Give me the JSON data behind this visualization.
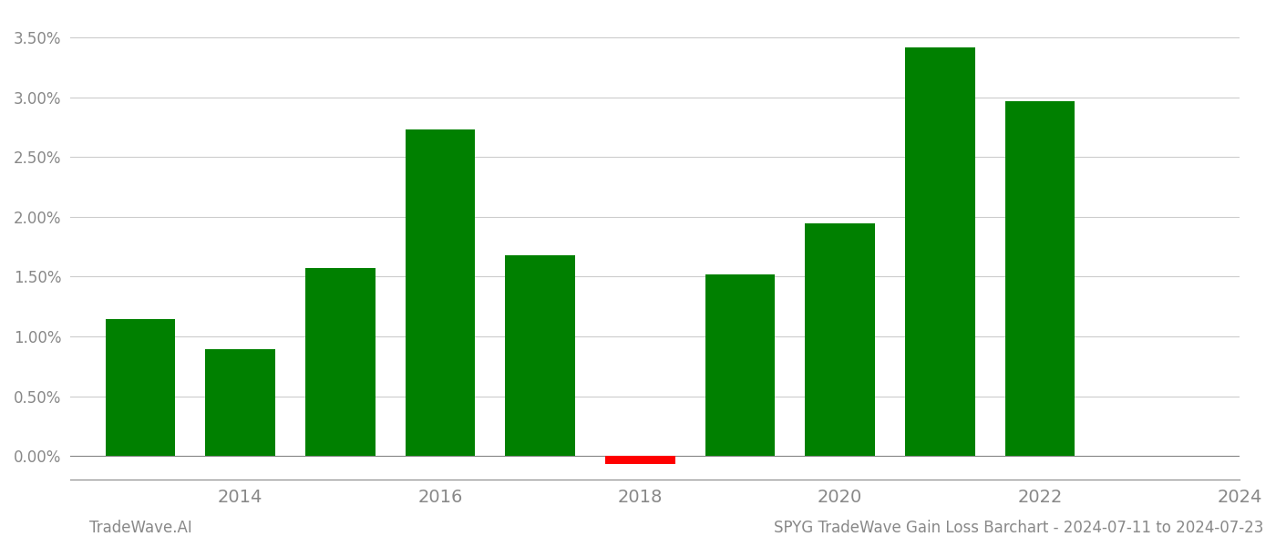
{
  "years": [
    2013,
    2014,
    2015,
    2016,
    2017,
    2018,
    2019,
    2020,
    2021,
    2022,
    2023
  ],
  "values": [
    0.01143,
    0.00895,
    0.01575,
    0.02735,
    0.01675,
    -0.00065,
    0.01515,
    0.01945,
    0.03415,
    0.02965,
    0.0
  ],
  "colors": [
    "#008000",
    "#008000",
    "#008000",
    "#008000",
    "#008000",
    "#ff0000",
    "#008000",
    "#008000",
    "#008000",
    "#008000",
    "#008000"
  ],
  "title": "SPYG TradeWave Gain Loss Barchart - 2024-07-11 to 2024-07-23",
  "footer_left": "TradeWave.AI",
  "ylim": [
    -0.002,
    0.037
  ],
  "ytick_values": [
    0.0,
    0.005,
    0.01,
    0.015,
    0.02,
    0.025,
    0.03,
    0.035
  ],
  "xtick_positions": [
    2014,
    2016,
    2018,
    2020,
    2022,
    2024
  ],
  "xtick_labels": [
    "2014",
    "2016",
    "2018",
    "2020",
    "2022",
    "2024"
  ],
  "background_color": "#ffffff",
  "grid_color": "#cccccc",
  "bar_width": 0.7,
  "xlabel_fontsize": 14,
  "ylabel_fontsize": 12,
  "footer_fontsize": 12
}
